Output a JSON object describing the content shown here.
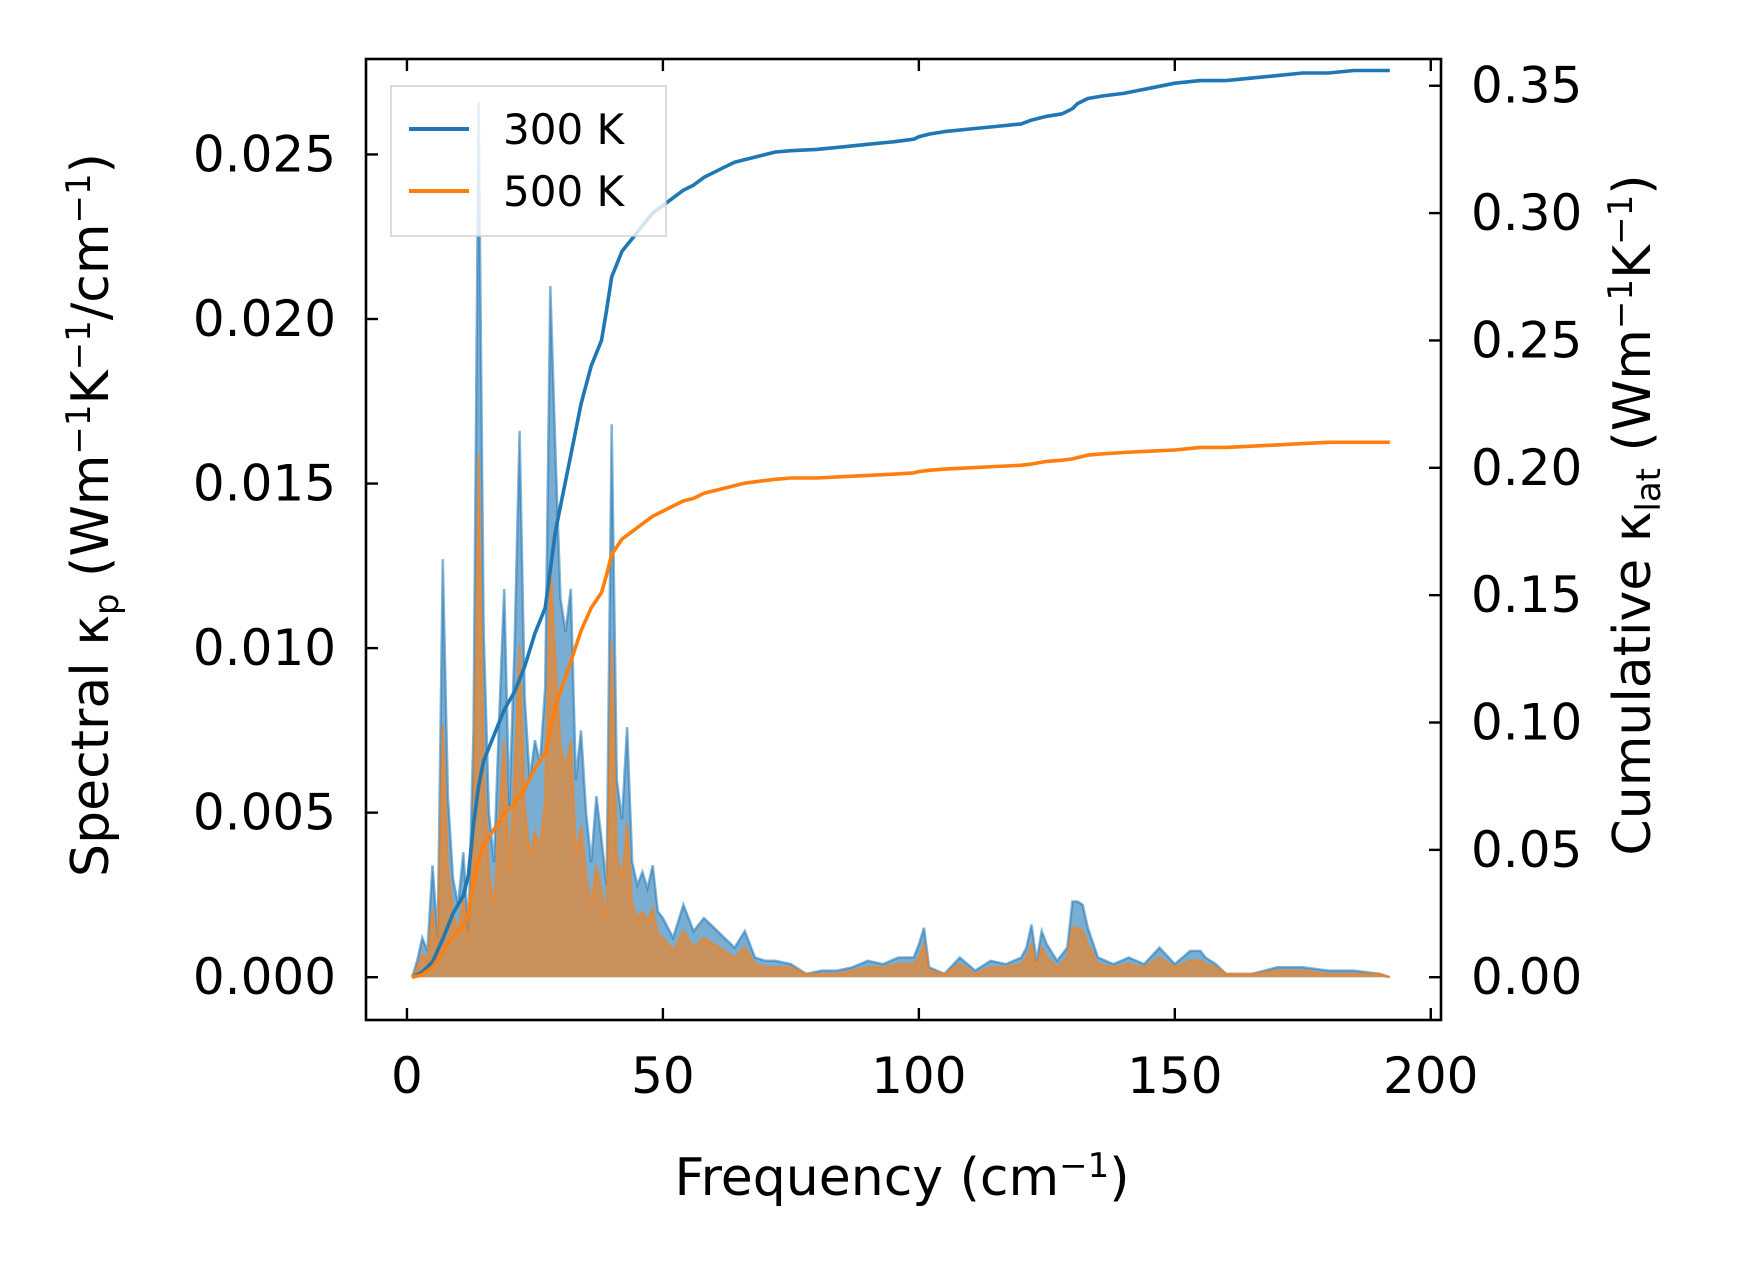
{
  "chart_data": {
    "type": "line",
    "xlabel": "Frequency (cm⁻¹)",
    "ylabel": "Spectral κp (Wm⁻¹K⁻¹/cm⁻¹)",
    "y2label": "Cumulative κlat (Wm⁻¹K⁻¹)",
    "xlim": [
      -8,
      202
    ],
    "ylim": [
      -0.0013,
      0.0279
    ],
    "y2lim": [
      -0.0168,
      0.3605
    ],
    "xticks": [
      "0",
      "50",
      "100",
      "150",
      "200"
    ],
    "yticks": [
      "0.000",
      "0.005",
      "0.010",
      "0.015",
      "0.020",
      "0.025"
    ],
    "y2ticks": [
      "0.00",
      "0.05",
      "0.10",
      "0.15",
      "0.20",
      "0.25",
      "0.30",
      "0.35"
    ],
    "legend": {
      "position": "top-left",
      "entries": [
        "300 K",
        "500 K"
      ]
    },
    "colors": {
      "300 K": "#1f77b4",
      "500 K": "#ff7f0e"
    },
    "grid": false,
    "spectral": [
      {
        "name": "300 K",
        "x": [
          1,
          2,
          3,
          4,
          5,
          6,
          7,
          8,
          9,
          10,
          11,
          12,
          13,
          14,
          15,
          16,
          17,
          18,
          19,
          20,
          21,
          22,
          23,
          24,
          25,
          26,
          27,
          28,
          29,
          30,
          31,
          32,
          33,
          34,
          35,
          36,
          37,
          38,
          39,
          40,
          41,
          42,
          43,
          44,
          45,
          46,
          47,
          48,
          49,
          50,
          52,
          54,
          56,
          58,
          60,
          62,
          64,
          66,
          68,
          70,
          72,
          75,
          78,
          81,
          84,
          87,
          90,
          93,
          96,
          99,
          100,
          101,
          102,
          105,
          108,
          111,
          114,
          117,
          120,
          121,
          122,
          123,
          124,
          125,
          127,
          129,
          130,
          131,
          132,
          133,
          135,
          138,
          141,
          144,
          147,
          150,
          153,
          155,
          156,
          158,
          160,
          165,
          170,
          175,
          180,
          185,
          190,
          192
        ],
        "values": [
          0.0,
          0.0005,
          0.0012,
          0.0008,
          0.0034,
          0.0012,
          0.0127,
          0.0055,
          0.003,
          0.0022,
          0.0038,
          0.0014,
          0.0075,
          0.0266,
          0.0105,
          0.005,
          0.0035,
          0.0078,
          0.0118,
          0.0052,
          0.01,
          0.0166,
          0.0085,
          0.006,
          0.0072,
          0.0065,
          0.0088,
          0.021,
          0.016,
          0.0115,
          0.0105,
          0.0118,
          0.006,
          0.0075,
          0.005,
          0.0035,
          0.0055,
          0.0042,
          0.0028,
          0.0168,
          0.006,
          0.0048,
          0.0076,
          0.0035,
          0.0028,
          0.0032,
          0.0027,
          0.0034,
          0.002,
          0.0018,
          0.0012,
          0.0022,
          0.0014,
          0.0018,
          0.0015,
          0.0012,
          0.0009,
          0.0014,
          0.0006,
          0.0005,
          0.0005,
          0.0004,
          0.0001,
          0.0002,
          0.0002,
          0.0003,
          0.0005,
          0.0004,
          0.0006,
          0.0006,
          0.001,
          0.0015,
          0.0003,
          0.0001,
          0.0006,
          0.0002,
          0.0005,
          0.0004,
          0.0006,
          0.0009,
          0.0016,
          0.0005,
          0.0014,
          0.001,
          0.0005,
          0.0009,
          0.0023,
          0.0023,
          0.0022,
          0.0015,
          0.0006,
          0.0004,
          0.0006,
          0.0004,
          0.0009,
          0.0004,
          0.0008,
          0.0008,
          0.0006,
          0.0004,
          0.0001,
          0.0001,
          0.0003,
          0.0003,
          0.0002,
          0.0002,
          0.0001,
          0.0
        ]
      },
      {
        "name": "500 K",
        "x": [
          1,
          2,
          3,
          4,
          5,
          6,
          7,
          8,
          9,
          10,
          11,
          12,
          13,
          14,
          15,
          16,
          17,
          18,
          19,
          20,
          21,
          22,
          23,
          24,
          25,
          26,
          27,
          28,
          29,
          30,
          31,
          32,
          33,
          34,
          35,
          36,
          37,
          38,
          39,
          40,
          41,
          42,
          43,
          44,
          45,
          46,
          47,
          48,
          49,
          50,
          52,
          54,
          56,
          58,
          60,
          62,
          64,
          66,
          68,
          70,
          72,
          75,
          78,
          81,
          84,
          87,
          90,
          93,
          96,
          99,
          100,
          101,
          102,
          105,
          108,
          111,
          114,
          117,
          120,
          121,
          122,
          123,
          124,
          125,
          127,
          129,
          130,
          131,
          132,
          133,
          135,
          138,
          141,
          144,
          147,
          150,
          153,
          155,
          156,
          158,
          160,
          165,
          170,
          175,
          180,
          185,
          190,
          192
        ],
        "values": [
          0.0,
          0.0003,
          0.0007,
          0.0005,
          0.0021,
          0.0008,
          0.0077,
          0.0034,
          0.0019,
          0.0014,
          0.0024,
          0.0009,
          0.0046,
          0.0159,
          0.0064,
          0.0031,
          0.0022,
          0.0048,
          0.0072,
          0.0032,
          0.0061,
          0.0101,
          0.0052,
          0.0037,
          0.0044,
          0.004,
          0.0054,
          0.0126,
          0.0097,
          0.007,
          0.0064,
          0.0072,
          0.0037,
          0.0046,
          0.0031,
          0.0022,
          0.0034,
          0.0026,
          0.0018,
          0.0102,
          0.0037,
          0.003,
          0.0047,
          0.0022,
          0.0018,
          0.002,
          0.0017,
          0.0021,
          0.0013,
          0.0012,
          0.0008,
          0.0014,
          0.0009,
          0.0012,
          0.001,
          0.0008,
          0.0006,
          0.0009,
          0.0004,
          0.0003,
          0.0003,
          0.0003,
          0.0001,
          0.0001,
          0.0001,
          0.0002,
          0.0003,
          0.0003,
          0.0004,
          0.0004,
          0.0006,
          0.001,
          0.0002,
          0.0001,
          0.0004,
          0.0001,
          0.0003,
          0.0003,
          0.0004,
          0.0006,
          0.001,
          0.0003,
          0.0009,
          0.0006,
          0.0003,
          0.0006,
          0.0015,
          0.0015,
          0.0014,
          0.001,
          0.0004,
          0.0003,
          0.0004,
          0.0003,
          0.0006,
          0.0003,
          0.0005,
          0.0005,
          0.0004,
          0.0003,
          0.0001,
          0.0001,
          0.0002,
          0.0002,
          0.0001,
          0.0001,
          0.0001,
          0.0
        ]
      }
    ],
    "cumulative": [
      {
        "name": "300 K",
        "x": [
          1,
          3,
          5,
          7,
          9,
          11,
          12,
          13,
          14,
          15,
          17,
          19,
          21,
          23,
          25,
          27,
          28,
          29,
          30,
          32,
          34,
          36,
          38,
          39,
          40,
          42,
          44,
          46,
          48,
          50,
          52,
          54,
          56,
          58,
          60,
          62,
          64,
          66,
          68,
          70,
          72,
          75,
          80,
          85,
          90,
          95,
          99,
          100,
          102,
          105,
          110,
          115,
          120,
          122,
          125,
          128,
          130,
          131,
          133,
          136,
          140,
          145,
          150,
          155,
          160,
          165,
          170,
          175,
          180,
          185,
          192
        ],
        "values": [
          0.0,
          0.002,
          0.006,
          0.015,
          0.025,
          0.032,
          0.04,
          0.06,
          0.075,
          0.085,
          0.095,
          0.105,
          0.112,
          0.122,
          0.135,
          0.145,
          0.16,
          0.175,
          0.185,
          0.205,
          0.225,
          0.24,
          0.25,
          0.262,
          0.275,
          0.285,
          0.29,
          0.295,
          0.3,
          0.303,
          0.306,
          0.309,
          0.311,
          0.314,
          0.316,
          0.318,
          0.32,
          0.321,
          0.322,
          0.323,
          0.324,
          0.3245,
          0.325,
          0.326,
          0.327,
          0.328,
          0.329,
          0.33,
          0.331,
          0.332,
          0.333,
          0.334,
          0.335,
          0.3365,
          0.338,
          0.339,
          0.341,
          0.343,
          0.345,
          0.346,
          0.347,
          0.349,
          0.351,
          0.352,
          0.352,
          0.353,
          0.354,
          0.355,
          0.355,
          0.356,
          0.356
        ]
      },
      {
        "name": "500 K",
        "x": [
          1,
          3,
          5,
          7,
          9,
          11,
          12,
          13,
          14,
          15,
          17,
          19,
          21,
          23,
          25,
          27,
          28,
          29,
          30,
          32,
          34,
          36,
          38,
          39,
          40,
          42,
          44,
          46,
          48,
          50,
          52,
          54,
          56,
          58,
          60,
          62,
          64,
          66,
          68,
          70,
          72,
          75,
          80,
          85,
          90,
          95,
          99,
          100,
          102,
          105,
          110,
          115,
          120,
          122,
          125,
          128,
          130,
          131,
          133,
          136,
          140,
          145,
          150,
          155,
          160,
          165,
          170,
          175,
          180,
          185,
          192
        ],
        "values": [
          0.0,
          0.001,
          0.004,
          0.01,
          0.016,
          0.02,
          0.025,
          0.037,
          0.046,
          0.052,
          0.058,
          0.064,
          0.068,
          0.074,
          0.082,
          0.088,
          0.097,
          0.106,
          0.112,
          0.124,
          0.136,
          0.145,
          0.151,
          0.158,
          0.166,
          0.172,
          0.175,
          0.178,
          0.181,
          0.183,
          0.185,
          0.187,
          0.188,
          0.19,
          0.191,
          0.192,
          0.193,
          0.194,
          0.1945,
          0.195,
          0.1955,
          0.196,
          0.196,
          0.1965,
          0.197,
          0.1975,
          0.198,
          0.1985,
          0.199,
          0.1995,
          0.2,
          0.2005,
          0.201,
          0.2015,
          0.2025,
          0.203,
          0.2035,
          0.204,
          0.205,
          0.2055,
          0.206,
          0.2065,
          0.207,
          0.208,
          0.208,
          0.2085,
          0.209,
          0.2095,
          0.21,
          0.21,
          0.21
        ]
      }
    ]
  }
}
